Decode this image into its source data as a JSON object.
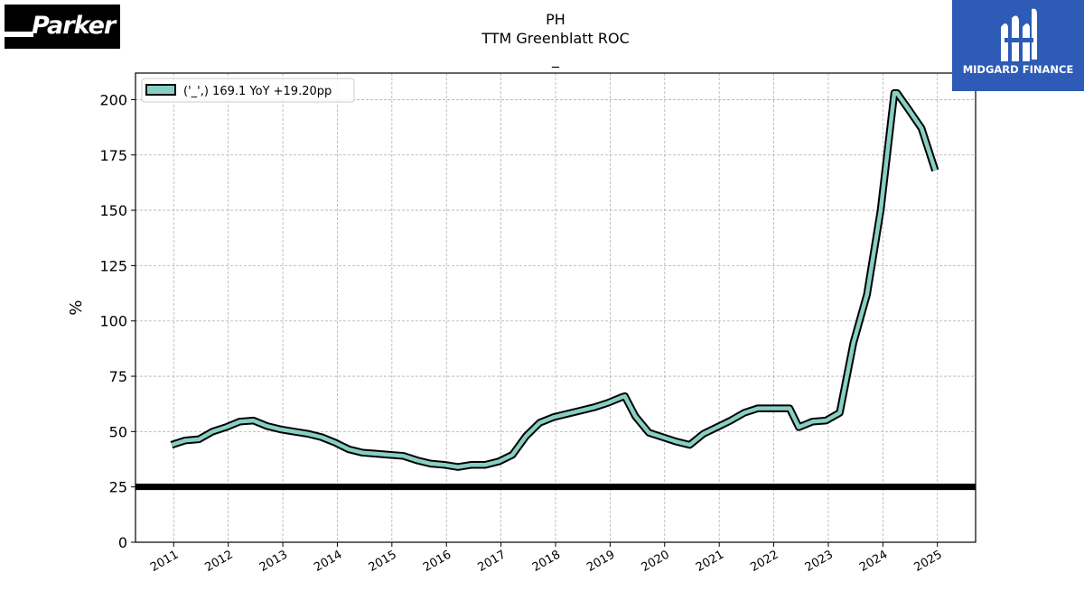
{
  "header": {
    "ticker": "PH",
    "subtitle": "TTM Greenblatt ROC",
    "extra": "_"
  },
  "logos": {
    "left_text": "Parker",
    "right_text": "MIDGARD FINANCE",
    "right_bg": "#2d5bb5"
  },
  "chart_data": {
    "type": "line",
    "ylabel": "%",
    "xlabel": "",
    "ylim": [
      0,
      212
    ],
    "xlim": [
      2010.3,
      2025.7
    ],
    "yticks": [
      0,
      25,
      50,
      75,
      100,
      125,
      150,
      175,
      200
    ],
    "xticks": [
      2011,
      2012,
      2013,
      2014,
      2015,
      2016,
      2017,
      2018,
      2019,
      2020,
      2021,
      2022,
      2023,
      2024,
      2025
    ],
    "grid": true,
    "legend_position": "upper-left",
    "line_color": "#88cfc3",
    "outline_color": "#000000",
    "reference_line": {
      "value": 25,
      "color": "#000000"
    },
    "series": [
      {
        "name": "('_',) 169.1 YoY +19.20pp",
        "x": [
          2010.96,
          2011.21,
          2011.46,
          2011.71,
          2011.96,
          2012.21,
          2012.46,
          2012.71,
          2012.96,
          2013.21,
          2013.46,
          2013.71,
          2013.96,
          2014.21,
          2014.46,
          2014.71,
          2014.96,
          2015.21,
          2015.46,
          2015.71,
          2015.96,
          2016.21,
          2016.46,
          2016.71,
          2016.96,
          2017.21,
          2017.46,
          2017.71,
          2017.96,
          2018.21,
          2018.46,
          2018.71,
          2018.96,
          2019.21,
          2019.27,
          2019.46,
          2019.71,
          2019.96,
          2020.21,
          2020.46,
          2020.71,
          2020.96,
          2021.21,
          2021.46,
          2021.71,
          2021.96,
          2022.21,
          2022.29,
          2022.46,
          2022.71,
          2022.96,
          2023.21,
          2023.46,
          2023.71,
          2023.96,
          2024.21,
          2024.26,
          2024.46,
          2024.71,
          2024.96
        ],
        "values": [
          44,
          46,
          46.5,
          50,
          52,
          54.5,
          55,
          52.5,
          51,
          50,
          49,
          47.5,
          45,
          42,
          40.5,
          40,
          39.5,
          39,
          37,
          35.5,
          35,
          34,
          35,
          35,
          36.5,
          39.5,
          48,
          54,
          56.5,
          58,
          59.5,
          61,
          63,
          65.5,
          66,
          57,
          49.5,
          47.5,
          45.5,
          44,
          49,
          52,
          55,
          58.5,
          60.5,
          60.5,
          60.5,
          60.5,
          52,
          54.5,
          55,
          58.5,
          90,
          112,
          150,
          203,
          203,
          196,
          187,
          168
        ]
      }
    ]
  }
}
